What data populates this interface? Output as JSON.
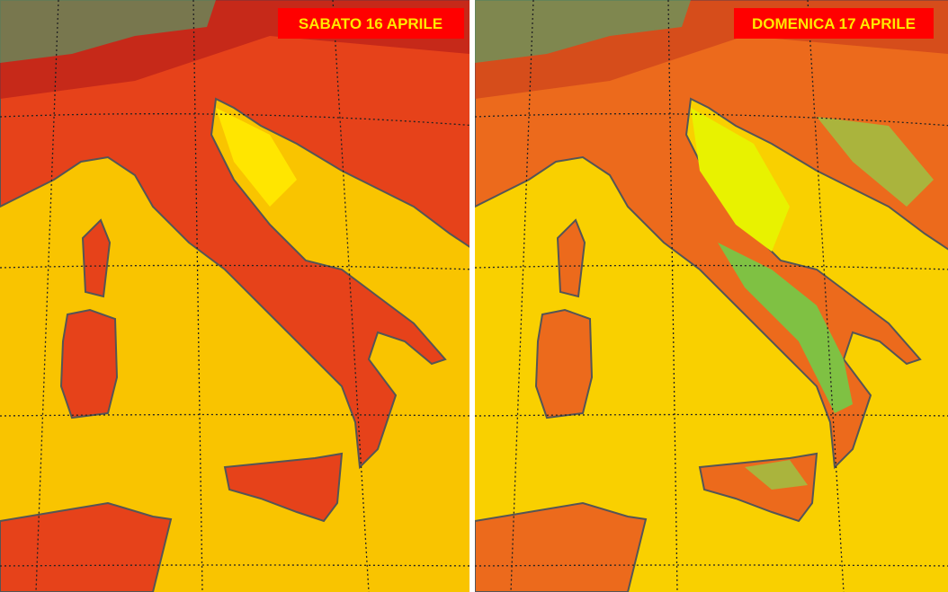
{
  "panels": [
    {
      "title": "SABATO 16 APRILE"
    },
    {
      "title": "DOMENICA 17 APRILE"
    }
  ]
}
